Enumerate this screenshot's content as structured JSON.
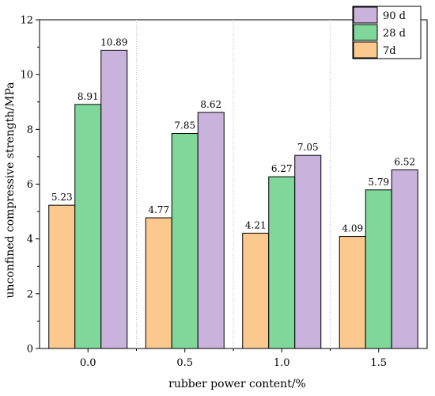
{
  "chart_data": {
    "type": "bar",
    "title": "",
    "xlabel": "rubber power content/%",
    "ylabel": "unconfined compressive strength/MPa",
    "categories": [
      "0.0",
      "0.5",
      "1.0",
      "1.5"
    ],
    "ylim": [
      0,
      12
    ],
    "yticks": [
      0,
      2,
      4,
      6,
      8,
      10,
      12
    ],
    "series": [
      {
        "name": "7d",
        "color": "#fbc98e",
        "values": [
          5.23,
          4.77,
          4.21,
          4.09
        ],
        "labels": [
          "5.23",
          "4.77",
          "4.21",
          "4.09"
        ]
      },
      {
        "name": "28 d",
        "color": "#7fd89a",
        "values": [
          8.91,
          7.85,
          6.27,
          5.79
        ],
        "labels": [
          "8.91",
          "7.85",
          "6.27",
          "5.79"
        ]
      },
      {
        "name": "90 d",
        "color": "#c9b3dc",
        "values": [
          10.89,
          8.62,
          7.05,
          6.52
        ],
        "labels": [
          "10.89",
          "8.62",
          "7.05",
          "6.52"
        ]
      }
    ],
    "legend_order": [
      2,
      1,
      0
    ],
    "legend_position": "top-right",
    "grid": "vertical-dotted-separators"
  }
}
